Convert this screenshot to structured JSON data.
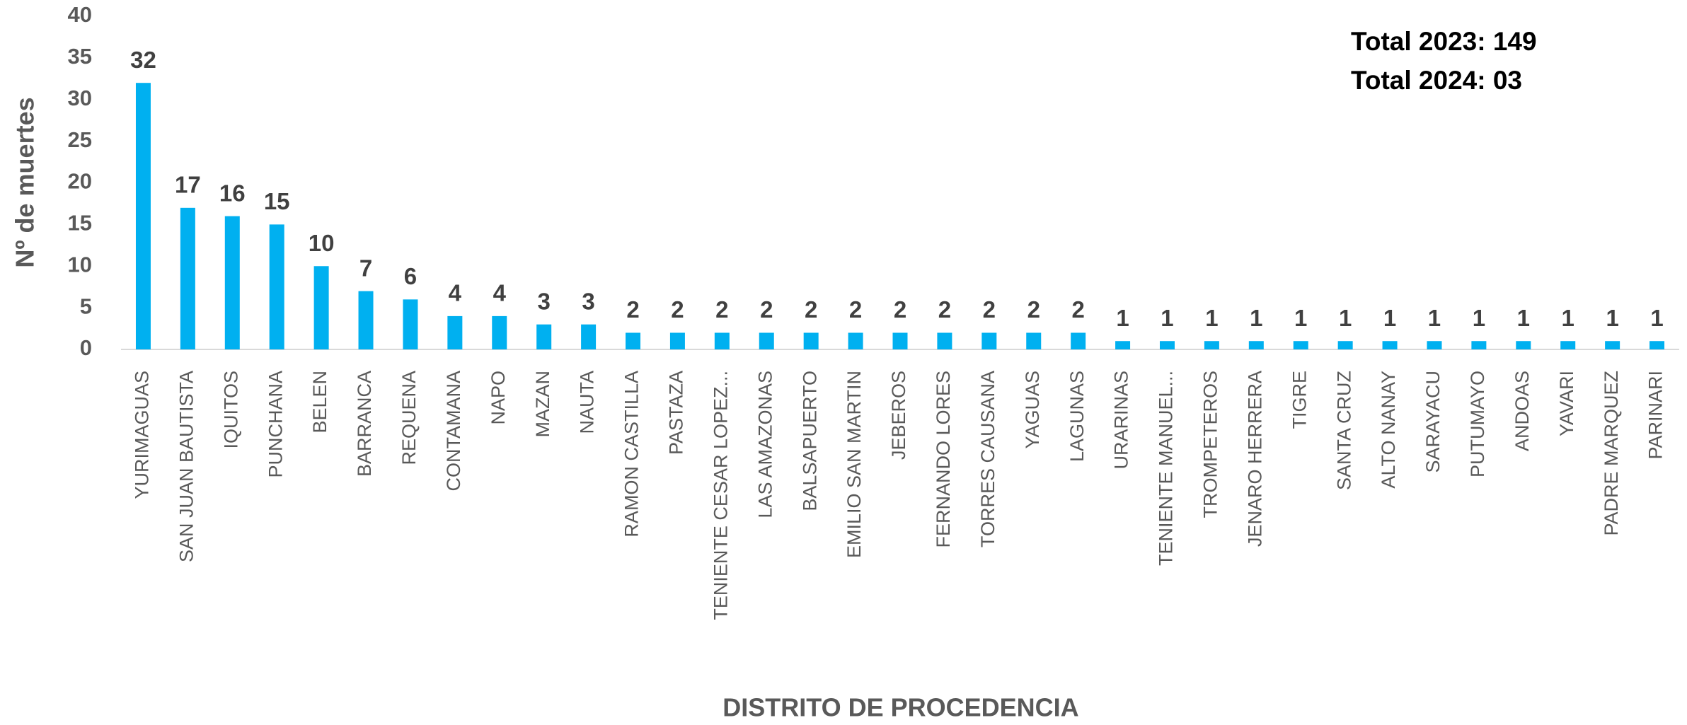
{
  "chart_data": {
    "type": "bar",
    "y_label": "Nº de muertes",
    "x_label": "DISTRITO DE PROCEDENCIA",
    "annotations": [
      "Total 2023: 149",
      "Total 2024: 03"
    ],
    "categories": [
      "YURIMAGUAS",
      "SAN JUAN BAUTISTA",
      "IQUITOS",
      "PUNCHANA",
      "BELEN",
      "BARRANCA",
      "REQUENA",
      "CONTAMANA",
      "NAPO",
      "MAZAN",
      "NAUTA",
      "RAMON CASTILLA",
      "PASTAZA",
      "TENIENTE CESAR LOPEZ...",
      "LAS AMAZONAS",
      "BALSAPUERTO",
      "EMILIO SAN MARTIN",
      "JEBEROS",
      "FERNANDO LORES",
      "TORRES CAUSANA",
      "YAGUAS",
      "LAGUNAS",
      "URARINAS",
      "TENIENTE MANUEL...",
      "TROMPETEROS",
      "JENARO HERRERA",
      "TIGRE",
      "SANTA CRUZ",
      "ALTO NANAY",
      "SARAYACU",
      "PUTUMAYO",
      "ANDOAS",
      "YAVARI",
      "PADRE MARQUEZ",
      "PARINARI"
    ],
    "values": [
      32,
      17,
      16,
      15,
      10,
      7,
      6,
      4,
      4,
      3,
      3,
      2,
      2,
      2,
      2,
      2,
      2,
      2,
      2,
      2,
      2,
      2,
      1,
      1,
      1,
      1,
      1,
      1,
      1,
      1,
      1,
      1,
      1,
      1,
      1
    ],
    "color": "#00b0f0",
    "ylim": [
      0,
      40
    ],
    "yticks": [
      0,
      5,
      10,
      15,
      20,
      25,
      30,
      35,
      40
    ],
    "grid": false
  }
}
